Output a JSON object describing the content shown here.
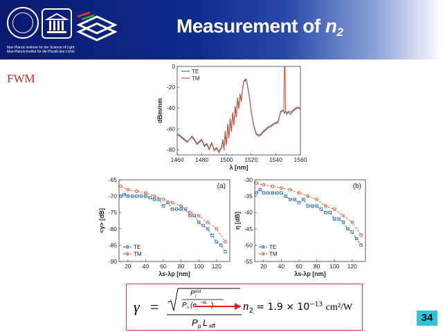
{
  "header": {
    "title_prefix": "Measurement of ",
    "title_var": "n",
    "title_sub": "2",
    "logo_caption_line1": "Max Planck Institute for the Science of Light",
    "logo_caption_line2": "Max-Planck-Institut für die Physik des Lichts"
  },
  "section_label": "FWM",
  "page_number": "34",
  "formula": {
    "gamma_symbol": "γ",
    "equals": "=",
    "p_out": "P",
    "p_out_sup": "out",
    "p_out_sub": "i",
    "p_s": "P",
    "p_s_sub": "s",
    "exp_term": "(e",
    "exp_sup": "−αL",
    "exp_close": ")",
    "denominator": "P",
    "denom_p_sub": "p",
    "denom_l": "L",
    "denom_l_sub": "eff",
    "result_var": "n",
    "result_sub": "2",
    "result_value": "= 1.9 × 10",
    "result_exp": "−13",
    "result_unit": "cm²/W"
  },
  "chart_data": [
    {
      "type": "line",
      "title": "",
      "xlabel": "λ [nm]",
      "ylabel": "dBm/nm",
      "xlim": [
        1460,
        1560
      ],
      "ylim": [
        -85,
        0
      ],
      "xticks": [
        "1460",
        "1480",
        "1500",
        "1520",
        "1540",
        "1560"
      ],
      "yticks": [
        "0",
        "-20",
        "-40",
        "-60",
        "-80"
      ],
      "legend_position": "top-left",
      "series": [
        {
          "name": "TE",
          "color": "#2f6fb5",
          "x": [
            1460,
            1462,
            1464,
            1466,
            1468,
            1470,
            1472,
            1474,
            1476,
            1478,
            1480,
            1482,
            1484,
            1486,
            1488,
            1490,
            1492,
            1494,
            1496,
            1497,
            1498,
            1499,
            1500,
            1501,
            1502,
            1503,
            1504,
            1505,
            1506,
            1507,
            1508,
            1509,
            1510,
            1511,
            1512,
            1513,
            1514,
            1516,
            1518,
            1520,
            1522,
            1524,
            1526,
            1528,
            1530,
            1532,
            1534,
            1536,
            1538,
            1540,
            1542,
            1544,
            1546,
            1547,
            1548,
            1549,
            1550,
            1552,
            1554,
            1556,
            1558,
            1560
          ],
          "y": [
            -65,
            -66,
            -68,
            -70,
            -72,
            -70,
            -67,
            -70,
            -74,
            -72,
            -70,
            -76,
            -74,
            -79,
            -73,
            -80,
            -78,
            -82,
            -77,
            -70,
            -80,
            -62,
            -75,
            -55,
            -68,
            -50,
            -62,
            -44,
            -56,
            -38,
            -48,
            -30,
            -40,
            -26,
            -33,
            -22,
            -14,
            -12,
            -24,
            -42,
            -56,
            -64,
            -66,
            -65,
            -62,
            -60,
            -58,
            -57,
            -55,
            -54,
            -53,
            -43,
            -42,
            -45,
            -43,
            -46,
            -44,
            -46,
            -43,
            -41,
            -40,
            -41
          ]
        },
        {
          "name": "TM",
          "color": "#d9532c",
          "x": [
            1460,
            1462,
            1464,
            1466,
            1468,
            1470,
            1472,
            1474,
            1476,
            1478,
            1480,
            1482,
            1484,
            1486,
            1488,
            1490,
            1492,
            1494,
            1496,
            1497,
            1498,
            1499,
            1500,
            1501,
            1502,
            1503,
            1504,
            1505,
            1506,
            1507,
            1508,
            1509,
            1510,
            1511,
            1512,
            1513,
            1514,
            1516,
            1518,
            1520,
            1522,
            1524,
            1526,
            1528,
            1530,
            1532,
            1534,
            1536,
            1538,
            1540,
            1542,
            1544,
            1546,
            1546.5,
            1547,
            1547.5,
            1548,
            1549,
            1550,
            1552,
            1554,
            1556,
            1558,
            1560
          ],
          "y": [
            -66,
            -67,
            -69,
            -71,
            -73,
            -70,
            -68,
            -71,
            -75,
            -73,
            -71,
            -77,
            -75,
            -80,
            -74,
            -81,
            -79,
            -83,
            -78,
            -71,
            -81,
            -63,
            -76,
            -56,
            -69,
            -51,
            -63,
            -45,
            -57,
            -39,
            -49,
            -31,
            -41,
            -27,
            -34,
            -23,
            -15,
            -13,
            -25,
            -43,
            -57,
            -65,
            -67,
            -66,
            -63,
            -61,
            -59,
            -58,
            -56,
            -55,
            -54,
            -44,
            -43,
            -43,
            0,
            0,
            -43,
            -45,
            -43,
            -44,
            -42,
            -40,
            -39,
            -40
          ]
        }
      ]
    },
    {
      "type": "line",
      "panel_label": "(a)",
      "xlabel": "λs-λp [nm]",
      "ylabel": "<γ> [dB]",
      "xlim": [
        10,
        135
      ],
      "ylim": [
        -90,
        -65
      ],
      "xticks": [
        "20",
        "40",
        "60",
        "80",
        "100",
        "120"
      ],
      "yticks": [
        "-65",
        "-70",
        "-75",
        "-80",
        "-85",
        "-90"
      ],
      "legend_position": "bottom-left",
      "series": [
        {
          "name": "TE",
          "color": "#2f6fb5",
          "marker": "square",
          "x": [
            12,
            16,
            20,
            25,
            30,
            35,
            40,
            45,
            50,
            55,
            60,
            65,
            70,
            75,
            80,
            85,
            90,
            95,
            100,
            105,
            110,
            115,
            120,
            125,
            130
          ],
          "y": [
            -70,
            -69.5,
            -70,
            -70,
            -70,
            -70,
            -70,
            -70.5,
            -71,
            -71,
            -73,
            -72,
            -74,
            -74,
            -74,
            -74,
            -76,
            -76,
            -78,
            -79,
            -80,
            -82,
            -84,
            -85,
            -87
          ]
        },
        {
          "name": "TM",
          "color": "#d9532c",
          "marker": "circle",
          "x": [
            12,
            20,
            30,
            40,
            50,
            60,
            70,
            80,
            90,
            100,
            110,
            120,
            130
          ],
          "y": [
            -67,
            -68,
            -68.5,
            -69,
            -70,
            -71,
            -72,
            -73,
            -75,
            -76,
            -78,
            -80,
            -84
          ]
        }
      ]
    },
    {
      "type": "line",
      "panel_label": "(b)",
      "xlabel": "λs-λp [nm]",
      "ylabel": "η [dB]",
      "xlim": [
        10,
        135
      ],
      "ylim": [
        -55,
        -30
      ],
      "xticks": [
        "20",
        "40",
        "60",
        "80",
        "100",
        "120"
      ],
      "yticks": [
        "-30",
        "-35",
        "-40",
        "-45",
        "-50",
        "-55"
      ],
      "legend_position": "bottom-left",
      "series": [
        {
          "name": "TE",
          "color": "#2f6fb5",
          "marker": "square",
          "x": [
            12,
            16,
            20,
            25,
            30,
            35,
            40,
            45,
            50,
            55,
            60,
            65,
            70,
            75,
            80,
            85,
            90,
            95,
            100,
            105,
            110,
            115,
            120,
            125,
            130
          ],
          "y": [
            -34,
            -33,
            -34,
            -34,
            -34,
            -34,
            -34,
            -35,
            -36,
            -36,
            -37,
            -36,
            -38,
            -38,
            -38,
            -39,
            -40,
            -40,
            -42,
            -42,
            -43,
            -45,
            -46,
            -48,
            -50
          ]
        },
        {
          "name": "TM",
          "color": "#d9532c",
          "marker": "circle",
          "x": [
            12,
            20,
            30,
            40,
            50,
            60,
            70,
            80,
            90,
            100,
            110,
            120,
            130
          ],
          "y": [
            -31,
            -31.5,
            -32,
            -32.5,
            -33,
            -34,
            -35,
            -36,
            -38,
            -39,
            -41,
            -43,
            -47
          ]
        }
      ]
    }
  ]
}
